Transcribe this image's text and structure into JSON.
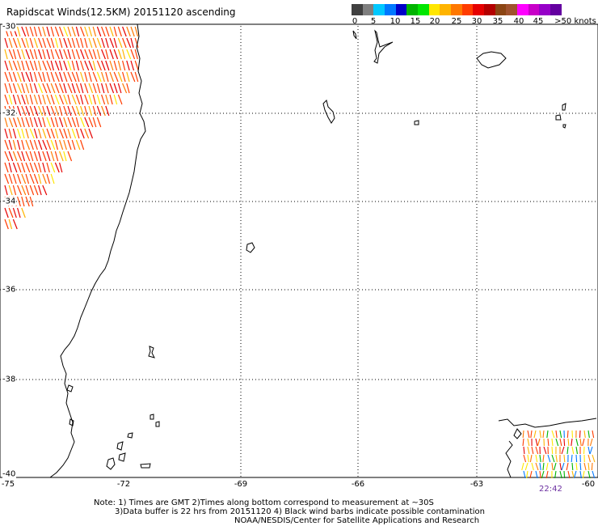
{
  "title": "Rapidscat Winds(12.5KM) 20151120 ascending",
  "legend": {
    "colors": [
      "#404040",
      "#7f7f7f",
      "#00c8ff",
      "#0078ff",
      "#0000c8",
      "#00b400",
      "#00e600",
      "#ffe600",
      "#ffb400",
      "#ff7800",
      "#ff3c00",
      "#e60000",
      "#b40000",
      "#8b4513",
      "#a0522d",
      "#ff00ff",
      "#c800c8",
      "#9600c8",
      "#6400a0"
    ],
    "labels": [
      "0",
      "5",
      "10",
      "15",
      "20",
      "25",
      "30",
      "35",
      "40",
      "45",
      ">50 knots"
    ]
  },
  "lat_labels": [
    "-30",
    "-32",
    "-34",
    "-36",
    "-38",
    "-40"
  ],
  "lon_labels": [
    "-75",
    "-72",
    "-69",
    "-66",
    "-63",
    "-60"
  ],
  "inset_time": "22:42",
  "notes": [
    "Note: 1) Times are GMT 2)Times along bottom correspond to measurement at ~30S",
    "3)Data buffer is 22 hrs from 20151120 4) Black wind barbs indicate possible contamination",
    "NOAA/NESDIS/Center for Satellite Applications and Research"
  ]
}
